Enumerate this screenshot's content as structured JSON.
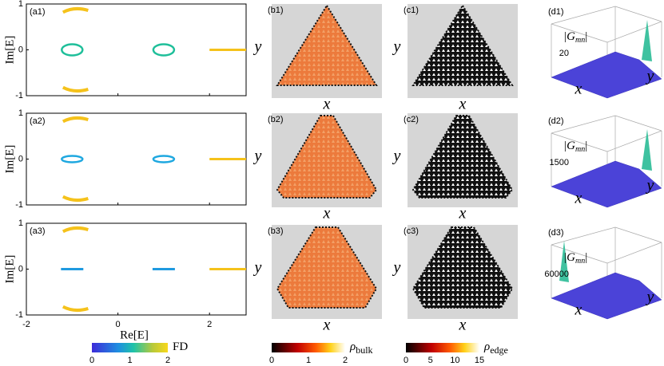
{
  "rows": [
    {
      "a": {
        "label": "(a1)"
      },
      "b": {
        "label": "(b1)"
      },
      "c": {
        "label": "(c1)"
      },
      "d": {
        "label": "(d1)",
        "ztick": "20"
      }
    },
    {
      "a": {
        "label": "(a2)"
      },
      "b": {
        "label": "(b2)"
      },
      "c": {
        "label": "(c2)"
      },
      "d": {
        "label": "(d2)",
        "ztick": "1500"
      }
    },
    {
      "a": {
        "label": "(a3)"
      },
      "b": {
        "label": "(b3)"
      },
      "c": {
        "label": "(c3)"
      },
      "d": {
        "label": "(d3)",
        "ztick": "60000"
      }
    }
  ],
  "spectrum_axes": {
    "xlabel": "Re[E]",
    "ylabel": "Im[E]",
    "xticks": [
      "-2",
      "0",
      "2"
    ],
    "yticks": [
      "1",
      "0",
      "-1"
    ]
  },
  "lattice_axes": {
    "xlabel": "x",
    "ylabel": "y"
  },
  "green_axes": {
    "zlabel_main": "|G",
    "zlabel_sub": "mn",
    "zlabel_end": "|",
    "xlabel": "x",
    "ylabel": "y"
  },
  "colorbars": [
    {
      "label_main": "FD",
      "ticks": [
        "0",
        "1",
        "2"
      ]
    },
    {
      "label_main": "ρ",
      "label_sub": "bulk",
      "ticks": [
        "0",
        "1",
        "2"
      ]
    },
    {
      "label_main": "ρ",
      "label_sub": "edge",
      "ticks": [
        "0",
        "5",
        "10",
        "15"
      ]
    }
  ]
}
